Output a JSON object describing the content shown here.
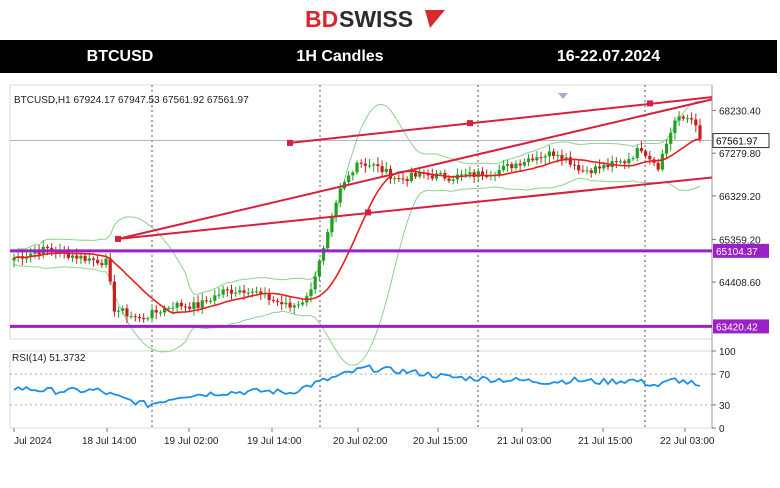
{
  "brand": {
    "name": "BDSWISS",
    "bd": "BD",
    "swiss": "SWISS",
    "red": "#d7282f",
    "dark": "#2b2b2b"
  },
  "header": {
    "symbol": "BTCUSD",
    "timeframe": "1H Candles",
    "period": "16-22.07.2024"
  },
  "chart_data": [
    {
      "type": "candlestick",
      "info_label": "BTCUSD,H1  67924.17 67947.53 67561.92 67561.97",
      "y_ticks": [
        "68230.40",
        "67279.80",
        "66329.20",
        "65359.20",
        "64408.60"
      ],
      "ylim": [
        63140,
        68800
      ],
      "price_tag": {
        "label": "67561.97",
        "value": 67561.97
      },
      "horizontal_levels": [
        {
          "label": "65104.37",
          "value": 65104.37,
          "color": "#9b20c8"
        },
        {
          "label": "63420.42",
          "value": 63420.42,
          "color": "#9b20c8"
        }
      ],
      "channel_color": "#d6203e",
      "ma_color": "#e81e1e",
      "band_color": "#8fd18f",
      "candle_up": "#22a022",
      "candle_down": "#c81e1e",
      "x_labels": [
        "Jul 2024",
        "18 Jul 14:00",
        "19 Jul 02:00",
        "19 Jul 14:00",
        "20 Jul 02:00",
        "20 Jul 15:00",
        "21 Jul 03:00",
        "21 Jul 15:00",
        "22 Jul 03:00"
      ]
    },
    {
      "type": "line",
      "info_label": "RSI(14) 51.3732",
      "y_ticks": [
        "100",
        "70",
        "30",
        "0"
      ],
      "ylim": [
        0,
        100
      ],
      "line_color": "#1e8fe8"
    }
  ]
}
